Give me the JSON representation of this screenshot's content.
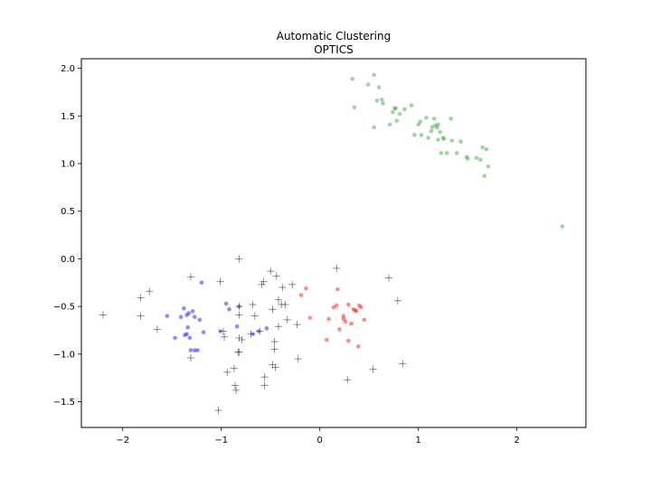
{
  "chart_data": {
    "type": "scatter",
    "title": "Automatic Clustering",
    "subtitle": "OPTICS",
    "xlabel": "",
    "ylabel": "",
    "xlim": [
      -2.42,
      2.7
    ],
    "ylim": [
      -1.77,
      2.1
    ],
    "xticks": [
      -2,
      -1,
      0,
      1,
      2
    ],
    "xtick_labels": [
      "−2",
      "−1",
      "0",
      "1",
      "2"
    ],
    "yticks": [
      -1.5,
      -1.0,
      -0.5,
      0.0,
      0.5,
      1.0,
      1.5,
      2.0
    ],
    "ytick_labels": [
      "−1.5",
      "−1.0",
      "−0.5",
      "0.0",
      "0.5",
      "1.0",
      "1.5",
      "2.0"
    ],
    "grid": false,
    "legend": "none",
    "series": [
      {
        "marker": "circle",
        "color": "#2ca02c",
        "points": [
          [
            0.33,
            1.89
          ],
          [
            0.49,
            1.83
          ],
          [
            0.55,
            1.93
          ],
          [
            0.6,
            1.8
          ],
          [
            0.58,
            1.66
          ],
          [
            0.63,
            1.67
          ],
          [
            0.64,
            1.63
          ],
          [
            0.35,
            1.59
          ],
          [
            0.74,
            1.54
          ],
          [
            0.76,
            1.58
          ],
          [
            0.77,
            1.58
          ],
          [
            0.86,
            1.57
          ],
          [
            0.81,
            1.52
          ],
          [
            0.78,
            1.45
          ],
          [
            0.71,
            1.41
          ],
          [
            0.55,
            1.38
          ],
          [
            0.93,
            1.61
          ],
          [
            1.0,
            1.41
          ],
          [
            1.02,
            1.44
          ],
          [
            1.08,
            1.48
          ],
          [
            1.14,
            1.38
          ],
          [
            1.16,
            1.47
          ],
          [
            1.19,
            1.38
          ],
          [
            1.22,
            1.33
          ],
          [
            1.25,
            1.27
          ],
          [
            1.2,
            1.25
          ],
          [
            1.1,
            1.27
          ],
          [
            1.03,
            1.3
          ],
          [
            0.96,
            1.3
          ],
          [
            1.13,
            1.34
          ],
          [
            1.33,
            1.47
          ],
          [
            1.34,
            1.24
          ],
          [
            1.43,
            1.23
          ],
          [
            1.23,
            1.11
          ],
          [
            1.29,
            1.11
          ],
          [
            1.39,
            1.11
          ],
          [
            1.49,
            1.07
          ],
          [
            1.5,
            1.05
          ],
          [
            1.59,
            1.06
          ],
          [
            1.63,
            1.04
          ],
          [
            1.65,
            1.17
          ],
          [
            1.69,
            1.15
          ],
          [
            1.71,
            0.97
          ],
          [
            1.67,
            0.87
          ],
          [
            2.46,
            0.34
          ],
          [
            1.2,
            1.41
          ],
          [
            1.17,
            1.4
          ],
          [
            1.26,
            1.26
          ]
        ]
      },
      {
        "marker": "circle",
        "color": "#0000ff",
        "points": [
          [
            -1.55,
            -0.6
          ],
          [
            -1.47,
            -0.83
          ],
          [
            -1.41,
            -0.61
          ],
          [
            -1.38,
            -0.52
          ],
          [
            -1.35,
            -0.79
          ],
          [
            -1.33,
            -0.57
          ],
          [
            -1.29,
            -0.55
          ],
          [
            -1.27,
            -0.61
          ],
          [
            -1.22,
            -0.64
          ],
          [
            -1.2,
            -0.25
          ],
          [
            -1.18,
            -0.77
          ],
          [
            -1.34,
            -0.72
          ],
          [
            -1.31,
            -0.96
          ],
          [
            -1.27,
            -0.96
          ],
          [
            -1.24,
            -0.96
          ],
          [
            -1.37,
            -0.8
          ],
          [
            -0.95,
            -0.47
          ],
          [
            -0.92,
            -0.53
          ],
          [
            -0.84,
            -0.71
          ],
          [
            -0.82,
            -0.5
          ],
          [
            -0.68,
            -0.79
          ],
          [
            -0.62,
            -0.76
          ],
          [
            -0.54,
            -0.73
          ],
          [
            -1.01,
            -0.76
          ],
          [
            -1.32,
            -0.83
          ],
          [
            -1.35,
            -0.59
          ]
        ]
      },
      {
        "marker": "circle",
        "color": "#ff0000",
        "points": [
          [
            -0.14,
            -0.31
          ],
          [
            -0.19,
            -0.38
          ],
          [
            -0.1,
            -0.62
          ],
          [
            0.07,
            -0.85
          ],
          [
            0.09,
            -0.63
          ],
          [
            0.14,
            -0.51
          ],
          [
            0.17,
            -0.49
          ],
          [
            0.18,
            -0.32
          ],
          [
            0.2,
            -0.74
          ],
          [
            0.24,
            -0.6
          ],
          [
            0.26,
            -0.66
          ],
          [
            0.29,
            -0.86
          ],
          [
            0.29,
            -0.48
          ],
          [
            0.32,
            -0.68
          ],
          [
            0.34,
            -0.53
          ],
          [
            0.37,
            -0.55
          ],
          [
            0.39,
            -0.92
          ],
          [
            0.4,
            -0.49
          ],
          [
            0.42,
            -0.51
          ],
          [
            0.45,
            -0.64
          ],
          [
            0.24,
            -0.63
          ],
          [
            0.36,
            -0.54
          ]
        ]
      },
      {
        "marker": "plus",
        "color": "#333333",
        "points": [
          [
            -2.2,
            -0.59
          ],
          [
            -1.82,
            -0.41
          ],
          [
            -1.82,
            -0.6
          ],
          [
            -1.73,
            -0.34
          ],
          [
            -1.65,
            -0.74
          ],
          [
            -1.31,
            -0.19
          ],
          [
            -1.31,
            -1.04
          ],
          [
            -1.01,
            -0.24
          ],
          [
            -0.97,
            -0.82
          ],
          [
            -0.98,
            -0.76
          ],
          [
            -0.94,
            -1.19
          ],
          [
            -0.87,
            -1.15
          ],
          [
            -0.86,
            -1.33
          ],
          [
            -0.85,
            -1.38
          ],
          [
            -0.82,
            0.0
          ],
          [
            -0.82,
            -0.5
          ],
          [
            -0.82,
            -0.59
          ],
          [
            -0.82,
            -0.83
          ],
          [
            -0.82,
            -0.98
          ],
          [
            -0.83,
            -0.98
          ],
          [
            -0.79,
            -0.85
          ],
          [
            -1.03,
            -1.59
          ],
          [
            -0.7,
            -0.79
          ],
          [
            -0.68,
            -0.48
          ],
          [
            -0.66,
            -0.6
          ],
          [
            -0.61,
            -0.76
          ],
          [
            -0.59,
            -0.27
          ],
          [
            -0.57,
            -0.24
          ],
          [
            -0.56,
            -1.24
          ],
          [
            -0.56,
            -1.33
          ],
          [
            -0.5,
            -0.13
          ],
          [
            -0.48,
            -0.53
          ],
          [
            -0.48,
            -1.11
          ],
          [
            -0.46,
            -0.87
          ],
          [
            -0.46,
            -0.95
          ],
          [
            -0.45,
            -1.14
          ],
          [
            -0.44,
            -0.18
          ],
          [
            -0.42,
            -0.43
          ],
          [
            -0.42,
            -0.71
          ],
          [
            -0.39,
            -0.48
          ],
          [
            -0.38,
            -0.3
          ],
          [
            -0.35,
            -0.48
          ],
          [
            -0.33,
            -0.64
          ],
          [
            -0.28,
            -0.27
          ],
          [
            -0.23,
            -0.69
          ],
          [
            -0.22,
            -1.05
          ],
          [
            0.17,
            -0.1
          ],
          [
            0.28,
            -1.27
          ],
          [
            0.54,
            -1.16
          ],
          [
            0.7,
            -0.2
          ],
          [
            0.79,
            -0.44
          ],
          [
            0.84,
            -1.1
          ]
        ]
      }
    ]
  }
}
